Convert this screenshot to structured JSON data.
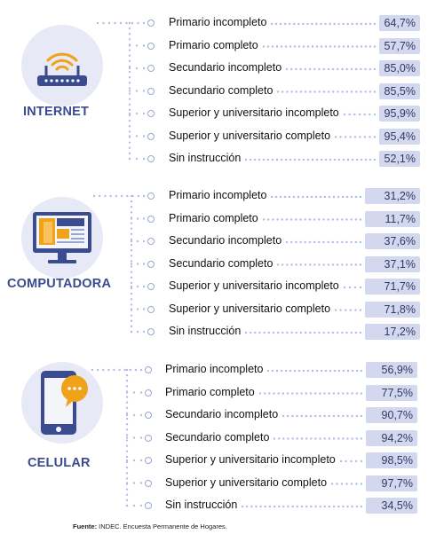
{
  "chart_data": [
    {
      "type": "bar",
      "title": "INTERNET",
      "categories": [
        "Primario incompleto",
        "Primario completo",
        "Secundario incompleto",
        "Secundario completo",
        "Superior y universitario incompleto",
        "Superior y universitario completo",
        "Sin instrucción"
      ],
      "values": [
        "64,7%",
        "57,7%",
        "85,0%",
        "85,5%",
        "95,9%",
        "95,4%",
        "52,1%"
      ]
    },
    {
      "type": "bar",
      "title": "COMPUTADORA",
      "categories": [
        "Primario incompleto",
        "Primario completo",
        "Secundario incompleto",
        "Secundario completo",
        "Superior y universitario incompleto",
        "Superior y universitario completo",
        "Sin instrucción"
      ],
      "values": [
        "31,2%",
        "11,7%",
        "37,6%",
        "37,1%",
        "71,7%",
        "71,8%",
        "17,2%"
      ]
    },
    {
      "type": "bar",
      "title": "CELULAR",
      "categories": [
        "Primario incompleto",
        "Primario completo",
        "Secundario incompleto",
        "Secundario completo",
        "Superior y universitario incompleto",
        "Superior y universitario completo",
        "Sin instrucción"
      ],
      "values": [
        "56,9%",
        "77,5%",
        "90,7%",
        "94,2%",
        "98,5%",
        "97,7%",
        "34,5%"
      ]
    }
  ],
  "footer": {
    "label": "Fuente:",
    "text": " INDEC. Encuesta Permanente de Hogares."
  },
  "colors": {
    "accent": "#3b4b8f",
    "value_bg": "#d3d8ef",
    "icon_bg": "#e7eaf6",
    "orange": "#f0a21b",
    "dots": "#b3bde0"
  },
  "icons": [
    "wifi-router-icon",
    "computer-monitor-icon",
    "smartphone-chat-icon"
  ]
}
